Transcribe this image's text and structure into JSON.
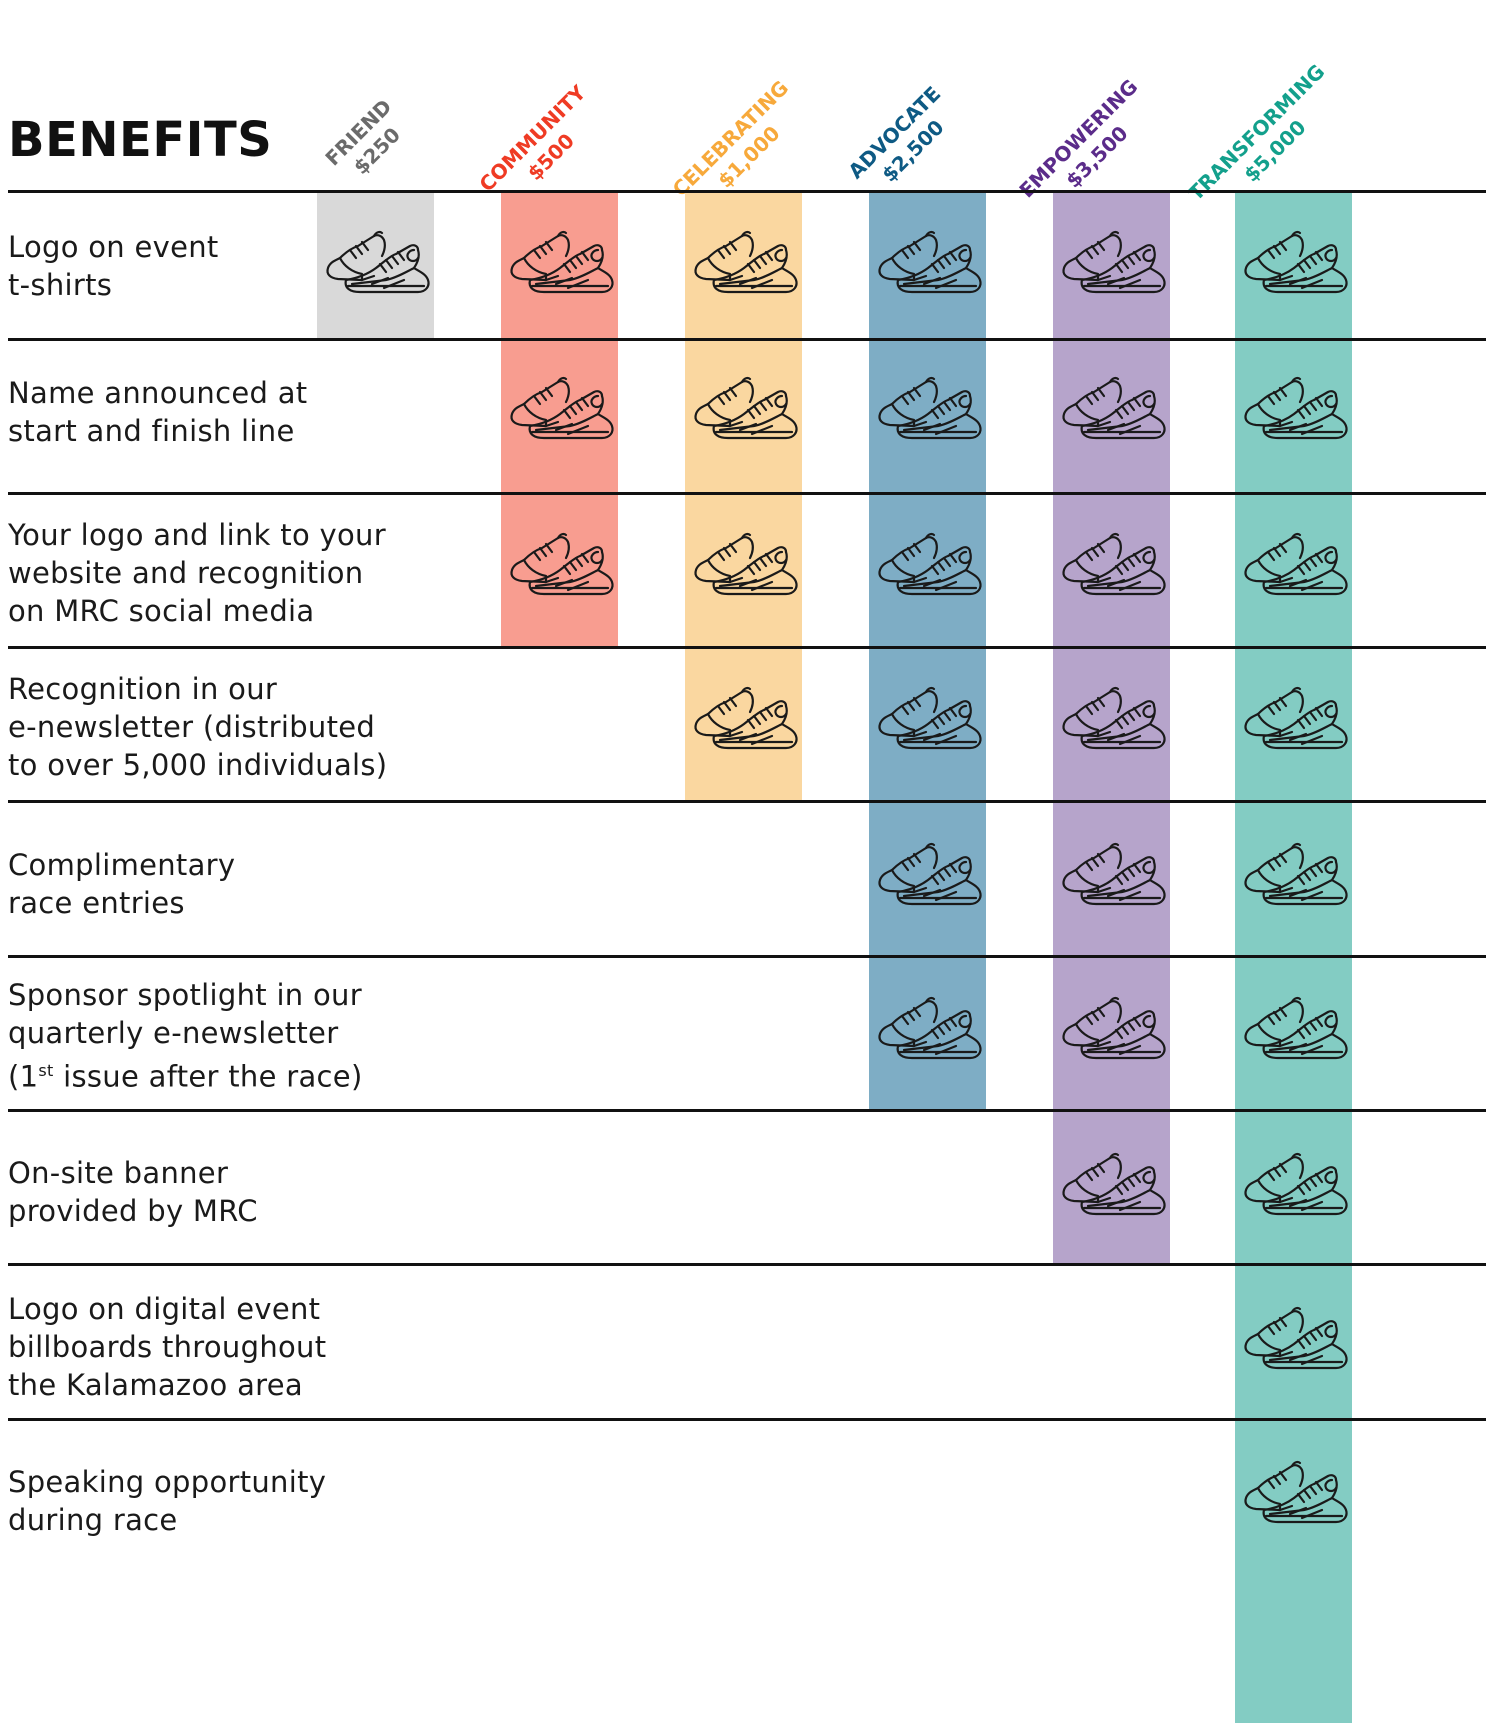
{
  "title": "BENEFITS",
  "tiers": [
    {
      "name": "FRIEND",
      "amount": "$250",
      "color": "#6b6b6b",
      "band": "#d9d9d9"
    },
    {
      "name": "COMMUNITY",
      "amount": "$500",
      "color": "#ef3b24",
      "band": "#f89d90"
    },
    {
      "name": "CELEBRATING",
      "amount": "$1,000",
      "color": "#f7a93b",
      "band": "#fad7a0"
    },
    {
      "name": "ADVOCATE",
      "amount": "$2,500",
      "color": "#0e5a84",
      "band": "#7eadc5"
    },
    {
      "name": "EMPOWERING",
      "amount": "$3,500",
      "color": "#5b2c8a",
      "band": "#b6a4cb"
    },
    {
      "name": "TRANSFORMING",
      "amount": "$5,000",
      "color": "#13a08c",
      "band": "#83ccc3"
    }
  ],
  "benefits": [
    {
      "lines": [
        "Logo on event",
        "t-shirts"
      ],
      "included": [
        true,
        true,
        true,
        true,
        true,
        true
      ]
    },
    {
      "lines": [
        "Name announced at",
        "start and finish line"
      ],
      "included": [
        false,
        true,
        true,
        true,
        true,
        true
      ]
    },
    {
      "lines": [
        "Your logo and link to your",
        "website and recognition",
        "on MRC social media"
      ],
      "included": [
        false,
        true,
        true,
        true,
        true,
        true
      ]
    },
    {
      "lines": [
        "Recognition in our",
        "e-newsletter (distributed",
        "to over 5,000 individuals)"
      ],
      "included": [
        false,
        false,
        true,
        true,
        true,
        true
      ]
    },
    {
      "lines": [
        "Complimentary",
        "race entries"
      ],
      "included": [
        false,
        false,
        false,
        true,
        true,
        true
      ]
    },
    {
      "lines": [
        "Sponsor spotlight in our",
        "quarterly e-newsletter",
        "(1",
        "st",
        " issue after the race)"
      ],
      "superscript_line": 2,
      "included": [
        false,
        false,
        false,
        true,
        true,
        true
      ]
    },
    {
      "lines": [
        "On-site banner",
        "provided by MRC"
      ],
      "included": [
        false,
        false,
        false,
        false,
        true,
        true
      ]
    },
    {
      "lines": [
        "Logo on digital event",
        "billboards throughout",
        "the Kalamazoo area"
      ],
      "included": [
        false,
        false,
        false,
        false,
        false,
        true
      ]
    },
    {
      "lines": [
        "Speaking opportunity",
        "during race"
      ],
      "included": [
        false,
        false,
        false,
        false,
        false,
        true
      ]
    }
  ],
  "icons": {
    "included_marker": "sneakers-icon"
  }
}
